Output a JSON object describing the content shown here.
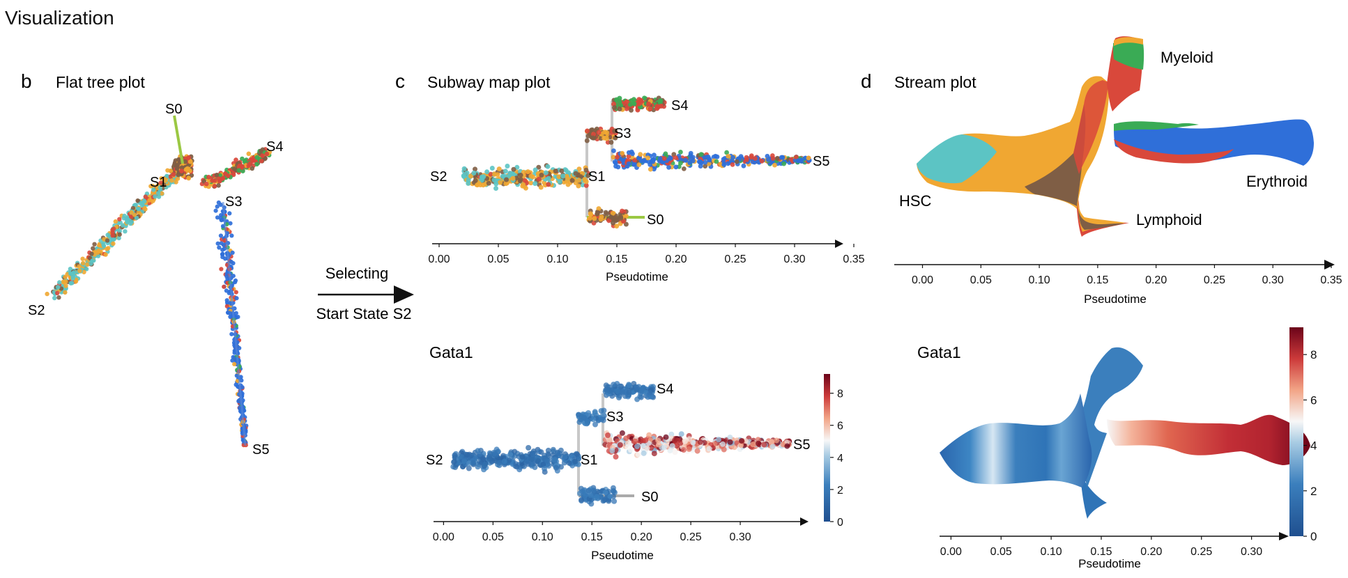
{
  "page": {
    "title": "Visualization"
  },
  "colors": {
    "S0": "#9bc843",
    "S1": "#f0a732",
    "S2": "#5cc4c4",
    "S3": "#7f5e45",
    "S4": "#3aab55",
    "S5": "#2f6fd9",
    "red": "#d9483b",
    "heat_low": "#1f4f8f",
    "heat_mid": "#f7f7f7",
    "heat_high": "#6b0319",
    "axis": "#111111",
    "branch_line": "#c8c8c8"
  },
  "panels": {
    "b": {
      "letter": "b",
      "title": "Flat tree plot"
    },
    "c": {
      "letter": "c",
      "title": "Subway map plot"
    },
    "c2": {
      "title": "Gata1"
    },
    "d": {
      "letter": "d",
      "title": "Stream plot"
    },
    "d2": {
      "title": "Gata1"
    }
  },
  "arrow": {
    "line1": "Selecting",
    "line2": "Start State S2"
  },
  "state_labels": [
    "S0",
    "S1",
    "S2",
    "S3",
    "S4",
    "S5"
  ],
  "stream_labels": [
    "HSC",
    "Myeloid",
    "Erythroid",
    "Lymphoid"
  ],
  "chart_data": [
    {
      "id": "flat_tree",
      "type": "scatter",
      "title": "Flat tree plot",
      "branches": [
        {
          "from": "S2",
          "to": "S1"
        },
        {
          "from": "S1",
          "to": "S0"
        },
        {
          "from": "S1",
          "to": "S3"
        },
        {
          "from": "S3",
          "to": "S4"
        },
        {
          "from": "S3",
          "to": "S5"
        }
      ],
      "state_nodes": [
        "S0",
        "S1",
        "S2",
        "S3",
        "S4",
        "S5"
      ]
    },
    {
      "id": "subway_map",
      "type": "scatter",
      "title": "Subway map plot",
      "xlabel": "Pseudotime",
      "xlim": [
        0.0,
        0.35
      ],
      "xticks": [
        "0.00",
        "0.05",
        "0.10",
        "0.15",
        "0.20",
        "0.25",
        "0.30",
        "0.35"
      ],
      "branches": [
        {
          "from": "S2",
          "to": "S1",
          "x": [
            0.0,
            0.125
          ]
        },
        {
          "from": "S1",
          "to": "S0",
          "x": [
            0.125,
            0.175
          ]
        },
        {
          "from": "S1",
          "to": "S3",
          "x": [
            0.125,
            0.147
          ]
        },
        {
          "from": "S3",
          "to": "S4",
          "x": [
            0.147,
            0.19
          ]
        },
        {
          "from": "S3",
          "to": "S5",
          "x": [
            0.147,
            0.31
          ]
        }
      ]
    },
    {
      "id": "subway_gata1",
      "type": "scatter",
      "title": "Gata1",
      "xlabel": "Pseudotime",
      "xlim": [
        -0.02,
        0.35
      ],
      "xticks": [
        "0.00",
        "0.05",
        "0.10",
        "0.15",
        "0.20",
        "0.25",
        "0.30"
      ],
      "colorbar": {
        "ticks": [
          "0",
          "2",
          "4",
          "6",
          "8"
        ],
        "range": [
          0,
          9.2
        ]
      },
      "gata1_mean": {
        "S2": 1.8,
        "S1": 2.0,
        "S0": 1.5,
        "S3": 2.0,
        "S4": 1.8,
        "S5": 8.0
      }
    },
    {
      "id": "stream",
      "type": "area",
      "title": "Stream plot",
      "xlabel": "Pseudotime",
      "xlim": [
        -0.02,
        0.35
      ],
      "xticks": [
        "0.00",
        "0.05",
        "0.10",
        "0.15",
        "0.20",
        "0.25",
        "0.30",
        "0.35"
      ],
      "branches": [
        "HSC",
        "Myeloid",
        "Erythroid",
        "Lymphoid"
      ]
    },
    {
      "id": "stream_gata1",
      "type": "heatmap",
      "title": "Gata1",
      "xlabel": "Pseudotime",
      "xlim": [
        -0.01,
        0.31
      ],
      "xticks": [
        "0.00",
        "0.05",
        "0.10",
        "0.15",
        "0.20",
        "0.25",
        "0.30"
      ],
      "colorbar": {
        "ticks": [
          "0",
          "2",
          "4",
          "6",
          "8"
        ],
        "range": [
          0,
          9.2
        ]
      }
    }
  ]
}
